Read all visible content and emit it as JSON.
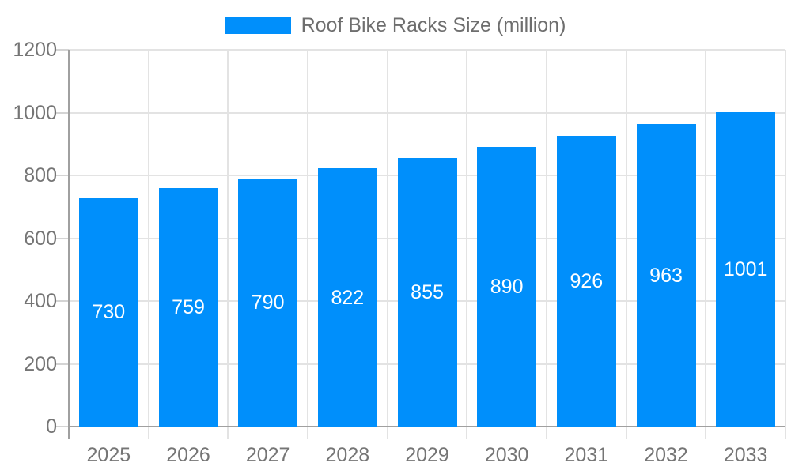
{
  "legend": {
    "label": "Roof Bike Racks Size (million)"
  },
  "chart_data": {
    "type": "bar",
    "title": "Roof Bike Racks Size (million)",
    "categories": [
      "2025",
      "2026",
      "2027",
      "2028",
      "2029",
      "2030",
      "2031",
      "2032",
      "2033"
    ],
    "values": [
      730,
      759,
      790,
      822,
      855,
      890,
      926,
      963,
      1001
    ],
    "xlabel": "",
    "ylabel": "",
    "ylim": [
      0,
      1200
    ],
    "yticks": [
      0,
      200,
      400,
      600,
      800,
      1000,
      1200
    ],
    "grid": true,
    "legend_position": "top-center",
    "colors": {
      "bar": "#008FFB",
      "bar_label": "#ffffff",
      "axis_text": "#757575",
      "legend_text": "#6e6e6e",
      "gridline": "#e3e3e3",
      "axis_line": "#a0a0a0",
      "tick_line": "#d4d4d4",
      "background": "#ffffff"
    }
  }
}
